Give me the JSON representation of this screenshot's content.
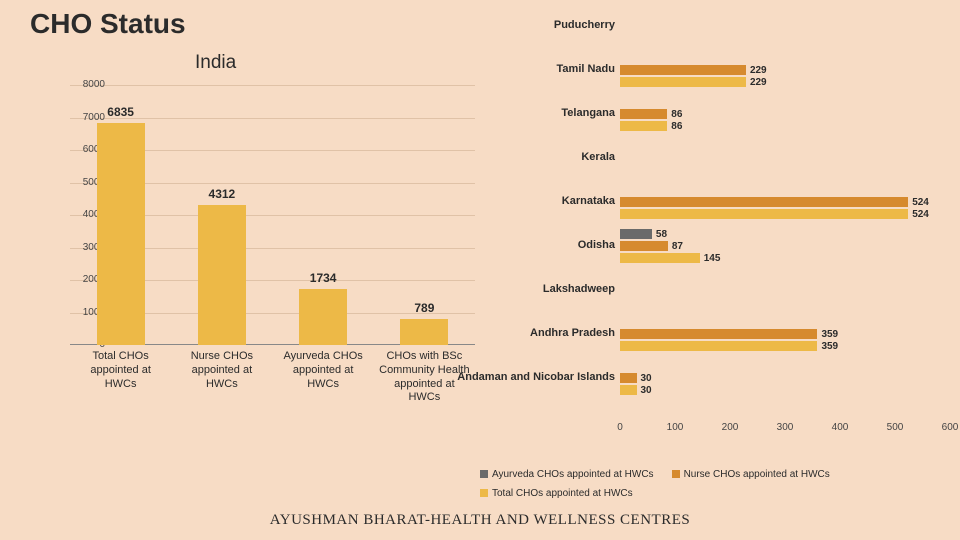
{
  "title": {
    "text": "CHO Status",
    "fontsize": 28
  },
  "footer": "AYUSHMAN BHARAT-HEALTH AND WELLNESS CENTRES",
  "background_color": "#f7dcc5",
  "india_chart": {
    "title": "India",
    "title_fontsize": 19,
    "type": "bar",
    "bar_color": "#edb947",
    "grid_color": "#c9a789",
    "ylim": [
      0,
      8000
    ],
    "ytick_step": 1000,
    "yticks": [
      "0",
      "1000",
      "2000",
      "3000",
      "4000",
      "5000",
      "6000",
      "7000",
      "8000"
    ],
    "categories": [
      "Total CHOs appointed at HWCs",
      "Nurse CHOs appointed at HWCs",
      "Ayurveda CHOs appointed at HWCs",
      "CHOs with BSc Community Health appointed at HWCs"
    ],
    "values": [
      6835,
      4312,
      1734,
      789
    ],
    "value_labels": [
      "6835",
      "4312",
      "1734",
      "789"
    ],
    "label_fontsize": 11
  },
  "states_chart": {
    "type": "grouped_horizontal_bar",
    "xlim": [
      0,
      600
    ],
    "xtick_step": 100,
    "xticks": [
      "0",
      "100",
      "200",
      "300",
      "400",
      "500",
      "600"
    ],
    "series": [
      {
        "name": "Ayurveda CHOs appointed at HWCs",
        "color": "#6a6a6a"
      },
      {
        "name": "Nurse CHOs appointed at HWCs",
        "color": "#d68a2e"
      },
      {
        "name": "Total CHOs appointed at HWCs",
        "color": "#edb947"
      }
    ],
    "states": [
      {
        "name": "Puducherry",
        "values": [
          null,
          null,
          null
        ]
      },
      {
        "name": "Tamil Nadu",
        "values": [
          null,
          229,
          229
        ]
      },
      {
        "name": "Telangana",
        "values": [
          null,
          86,
          86
        ]
      },
      {
        "name": "Kerala",
        "values": [
          null,
          null,
          null
        ]
      },
      {
        "name": "Karnataka",
        "values": [
          null,
          524,
          524
        ]
      },
      {
        "name": "Odisha",
        "values": [
          58,
          87,
          145
        ]
      },
      {
        "name": "Lakshadweep",
        "values": [
          null,
          null,
          null
        ]
      },
      {
        "name": "Andhra Pradesh",
        "values": [
          null,
          359,
          359
        ]
      },
      {
        "name": "Andaman and Nicobar Islands",
        "values": [
          null,
          30,
          30
        ]
      }
    ],
    "legend_box_size": 8,
    "label_fontsize": 11
  }
}
